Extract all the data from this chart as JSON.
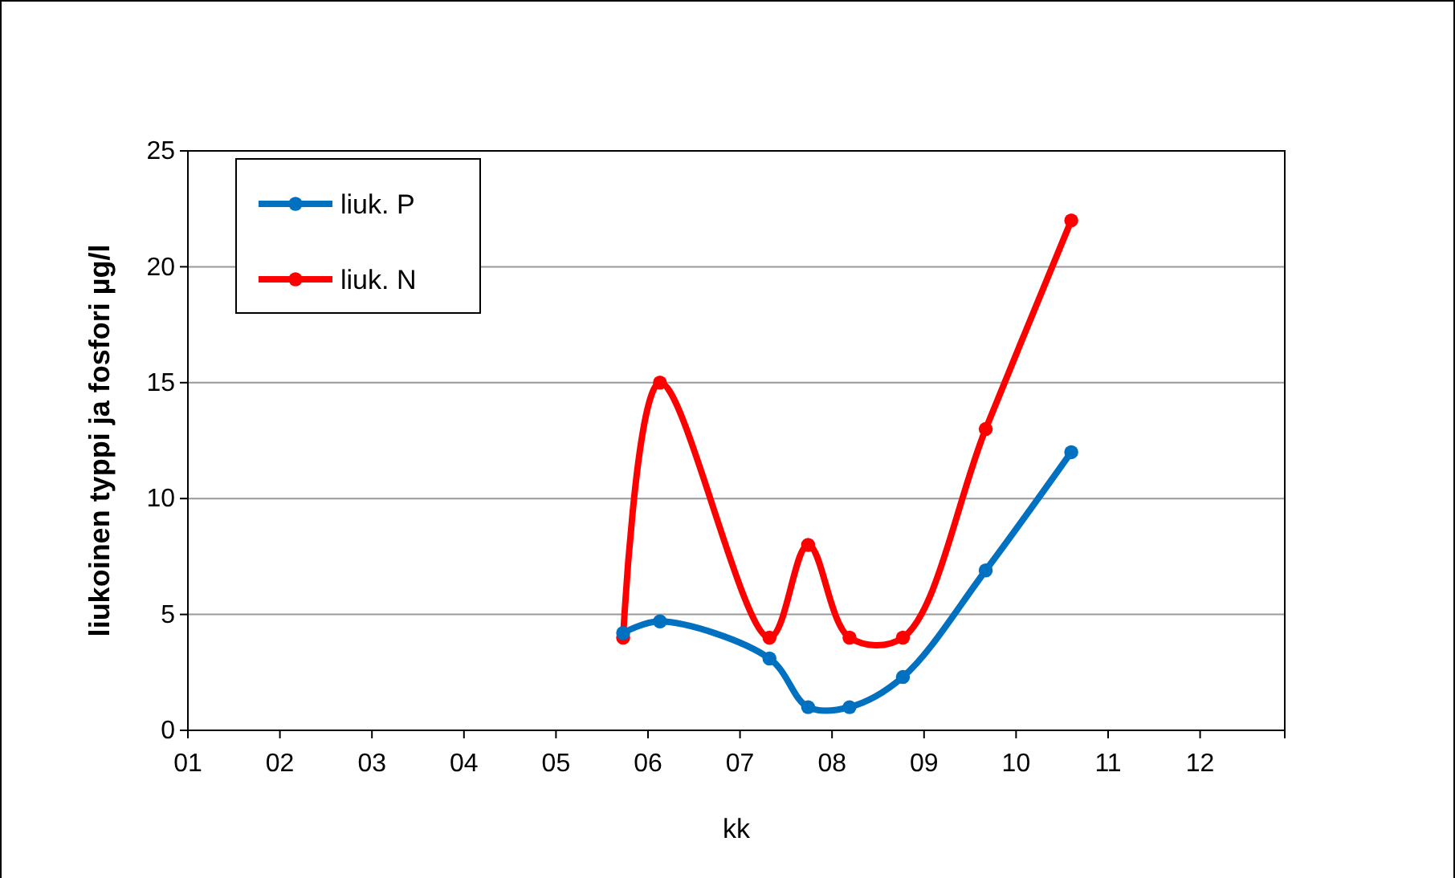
{
  "chart_data": {
    "type": "line",
    "xlabel": "kk",
    "ylabel": "liukoinen typpi ja fosfori µg/l",
    "x": [
      5.73,
      6.13,
      7.32,
      7.74,
      8.19,
      8.77,
      9.67,
      10.6
    ],
    "series": [
      {
        "name": "liuk. P",
        "color": "#0070c0",
        "values": [
          4.2,
          4.7,
          3.1,
          1.0,
          1.0,
          2.3,
          6.9,
          12.0
        ]
      },
      {
        "name": "liuk. N",
        "color": "#ff0000",
        "values": [
          4.0,
          15.0,
          4.0,
          8.0,
          4.0,
          4.0,
          13.0,
          22.0
        ]
      }
    ],
    "xlim": [
      1,
      12.92
    ],
    "xticks": [
      {
        "value": 1,
        "label": "01"
      },
      {
        "value": 2,
        "label": "02"
      },
      {
        "value": 3,
        "label": "03"
      },
      {
        "value": 4,
        "label": "04"
      },
      {
        "value": 5,
        "label": "05"
      },
      {
        "value": 6,
        "label": "06"
      },
      {
        "value": 7,
        "label": "07"
      },
      {
        "value": 8,
        "label": "08"
      },
      {
        "value": 9,
        "label": "09"
      },
      {
        "value": 10,
        "label": "10"
      },
      {
        "value": 11,
        "label": "11"
      },
      {
        "value": 12,
        "label": "12"
      }
    ],
    "ylim": [
      0,
      25
    ],
    "yticks": [
      0,
      5,
      10,
      15,
      20,
      25
    ],
    "grid": "y",
    "legend": "top left",
    "marker": "circle",
    "line_style": "solid"
  }
}
